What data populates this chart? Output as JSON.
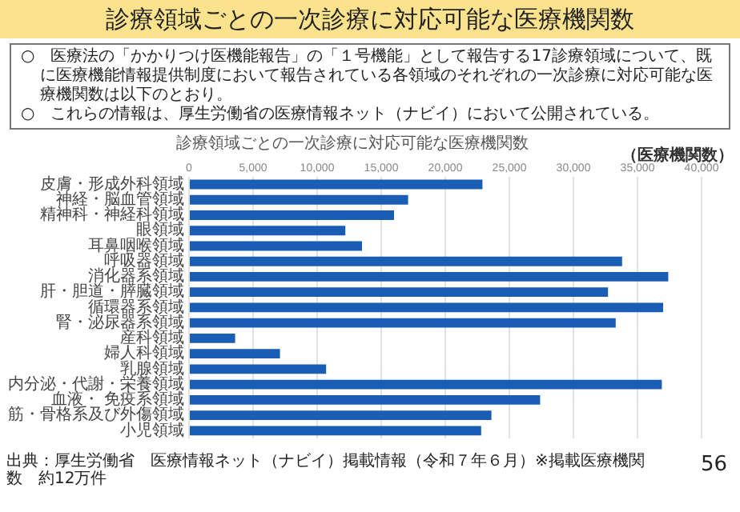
{
  "chart_data": {
    "type": "bar",
    "orientation": "horizontal",
    "title": "診療領域ごとの一次診療に対応可能な医療機関数",
    "subtitle": "診療領域ごとの一次診療に対応可能な医療機関数",
    "xlabel": "（医療機関数）",
    "categories": [
      "皮膚・形成外科領域",
      "神経・脳血管領域",
      "精神科・神経科領域",
      "眼領域",
      "耳鼻咽喉領域",
      "呼吸器領域",
      "消化器系領域",
      "肝・胆道・膵臓領域",
      "循環器系領域",
      "腎・泌尿器系領域",
      "産科領域",
      "婦人科領域",
      "乳腺領域",
      "内分泌・代謝・栄養領域",
      "血液・ 免疫系領域",
      "筋・骨格系及び外傷領域",
      "小児領域"
    ],
    "values": [
      22900,
      17100,
      16000,
      12200,
      13500,
      33800,
      37400,
      32700,
      37000,
      33300,
      3600,
      7100,
      10700,
      36900,
      27400,
      23600,
      22800
    ],
    "color": "#1a5db5",
    "xlim": [
      0,
      40000
    ],
    "xticks": [
      {
        "value": 0,
        "label": "0"
      },
      {
        "value": 5000,
        "label": "5,000"
      },
      {
        "value": 10000,
        "label": "10,000"
      },
      {
        "value": 15000,
        "label": "15,000"
      },
      {
        "value": 20000,
        "label": "20,000"
      },
      {
        "value": 25000,
        "label": "25,000"
      },
      {
        "value": 30000,
        "label": "30,000"
      },
      {
        "value": 35000,
        "label": "35,000"
      },
      {
        "value": 40000,
        "label": "40,000"
      }
    ],
    "grid": "x",
    "legend": false,
    "annotations": [
      "○　医療法の「かかりつけ医機能報告」の「１号機能」として報告する17診療領域について、既に医療機能情報提供制度において報告されている各領域のそれぞれの一次診療に対応可能な医療機関数は以下のとおり。",
      "○　これらの情報は、厚生労働省の医療情報ネット（ナビイ）において公開されている。",
      "出典：厚生労働省　医療情報ネット（ナビイ）掲載情報（令和７年６月）※掲載医療機関数　約12万件",
      "56"
    ]
  }
}
